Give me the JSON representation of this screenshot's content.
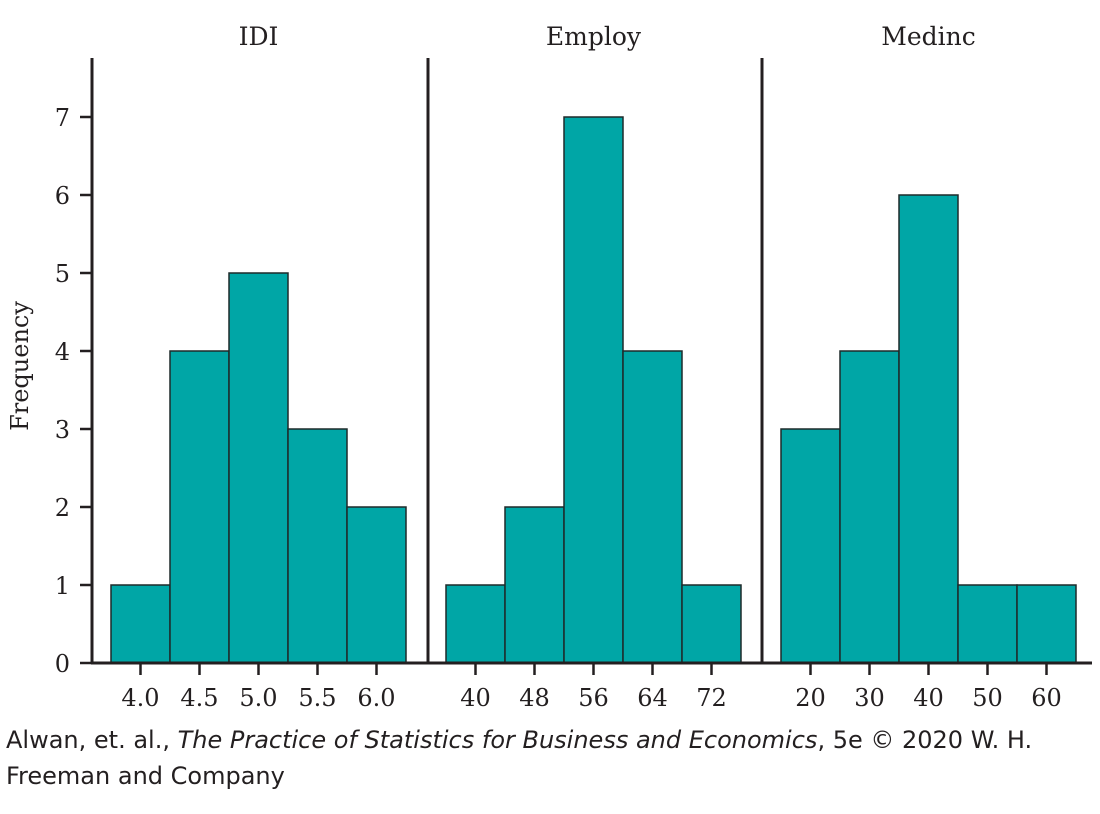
{
  "colors": {
    "bar_fill": "#00a6a6",
    "bar_stroke": "#1e2a2a",
    "axis": "#231f20",
    "text": "#231f20"
  },
  "chart_data": {
    "type": "bar",
    "ylabel": "Frequency",
    "ylim": [
      0,
      7.6
    ],
    "y_ticks": [
      0,
      1,
      2,
      3,
      4,
      5,
      6,
      7
    ],
    "panels": [
      {
        "title": "IDI",
        "bin_width": 0.5,
        "bin_centers": [
          4.0,
          4.5,
          5.0,
          5.5,
          6.0
        ],
        "tick_labels": [
          "4.0",
          "4.5",
          "5.0",
          "5.5",
          "6.0"
        ],
        "values": [
          1,
          4,
          5,
          3,
          2
        ]
      },
      {
        "title": "Employ",
        "bin_width": 8,
        "bin_centers": [
          40,
          48,
          56,
          64,
          72
        ],
        "tick_labels": [
          "40",
          "48",
          "56",
          "64",
          "72"
        ],
        "values": [
          1,
          2,
          7,
          4,
          1
        ]
      },
      {
        "title": "Medinc",
        "bin_width": 10,
        "bin_centers": [
          20,
          30,
          40,
          50,
          60
        ],
        "tick_labels": [
          "20",
          "30",
          "40",
          "50",
          "60"
        ],
        "values": [
          3,
          4,
          6,
          1,
          1
        ]
      }
    ]
  },
  "credit": {
    "authors": "Alwan, et. al., ",
    "book_title": "The Practice of Statistics for Business and Economics",
    "edition_publisher": ", 5e © 2020 W. H. Freeman and Company"
  }
}
